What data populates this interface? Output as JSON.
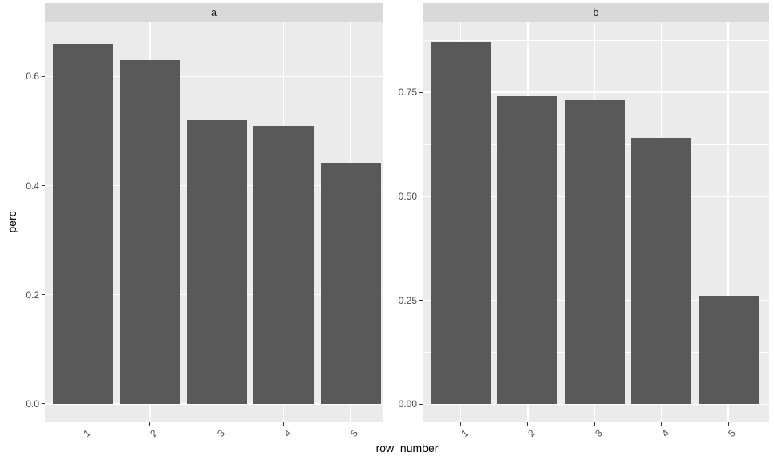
{
  "chart_data": {
    "type": "bar",
    "title": "",
    "xlabel": "row_number",
    "ylabel": "perc",
    "grid": true,
    "legend": false,
    "bar_color": "#595959",
    "panel_bg": "#EBEBEB",
    "strip_bg": "#D9D9D9",
    "grid_color": "#FFFFFF",
    "tick_text_color": "#4D4D4D",
    "strip_text_color": "#1A1A1A",
    "tick_mark_color": "#333333",
    "x_tick_angle_deg": 45,
    "facets": [
      {
        "label": "a",
        "categories": [
          "1",
          "2",
          "3",
          "4",
          "5"
        ],
        "values": [
          0.66,
          0.63,
          0.52,
          0.51,
          0.44
        ],
        "y_ticks": [
          0,
          0.2,
          0.4,
          0.6
        ],
        "y_tick_labels": [
          "0.0",
          "0.2",
          "0.4",
          "0.6"
        ],
        "y_minor_ticks": [
          0.1,
          0.3,
          0.5,
          0.7
        ],
        "ylim": [
          -0.034,
          0.699
        ]
      },
      {
        "label": "b",
        "categories": [
          "1",
          "2",
          "3",
          "4",
          "5"
        ],
        "values": [
          0.87,
          0.74,
          0.73,
          0.64,
          0.26
        ],
        "y_ticks": [
          0,
          0.25,
          0.5,
          0.75
        ],
        "y_tick_labels": [
          "0.00",
          "0.25",
          "0.50",
          "0.75"
        ],
        "y_minor_ticks": [
          0.125,
          0.375,
          0.625,
          0.875
        ],
        "ylim": [
          -0.0437,
          0.9177
        ]
      }
    ]
  }
}
